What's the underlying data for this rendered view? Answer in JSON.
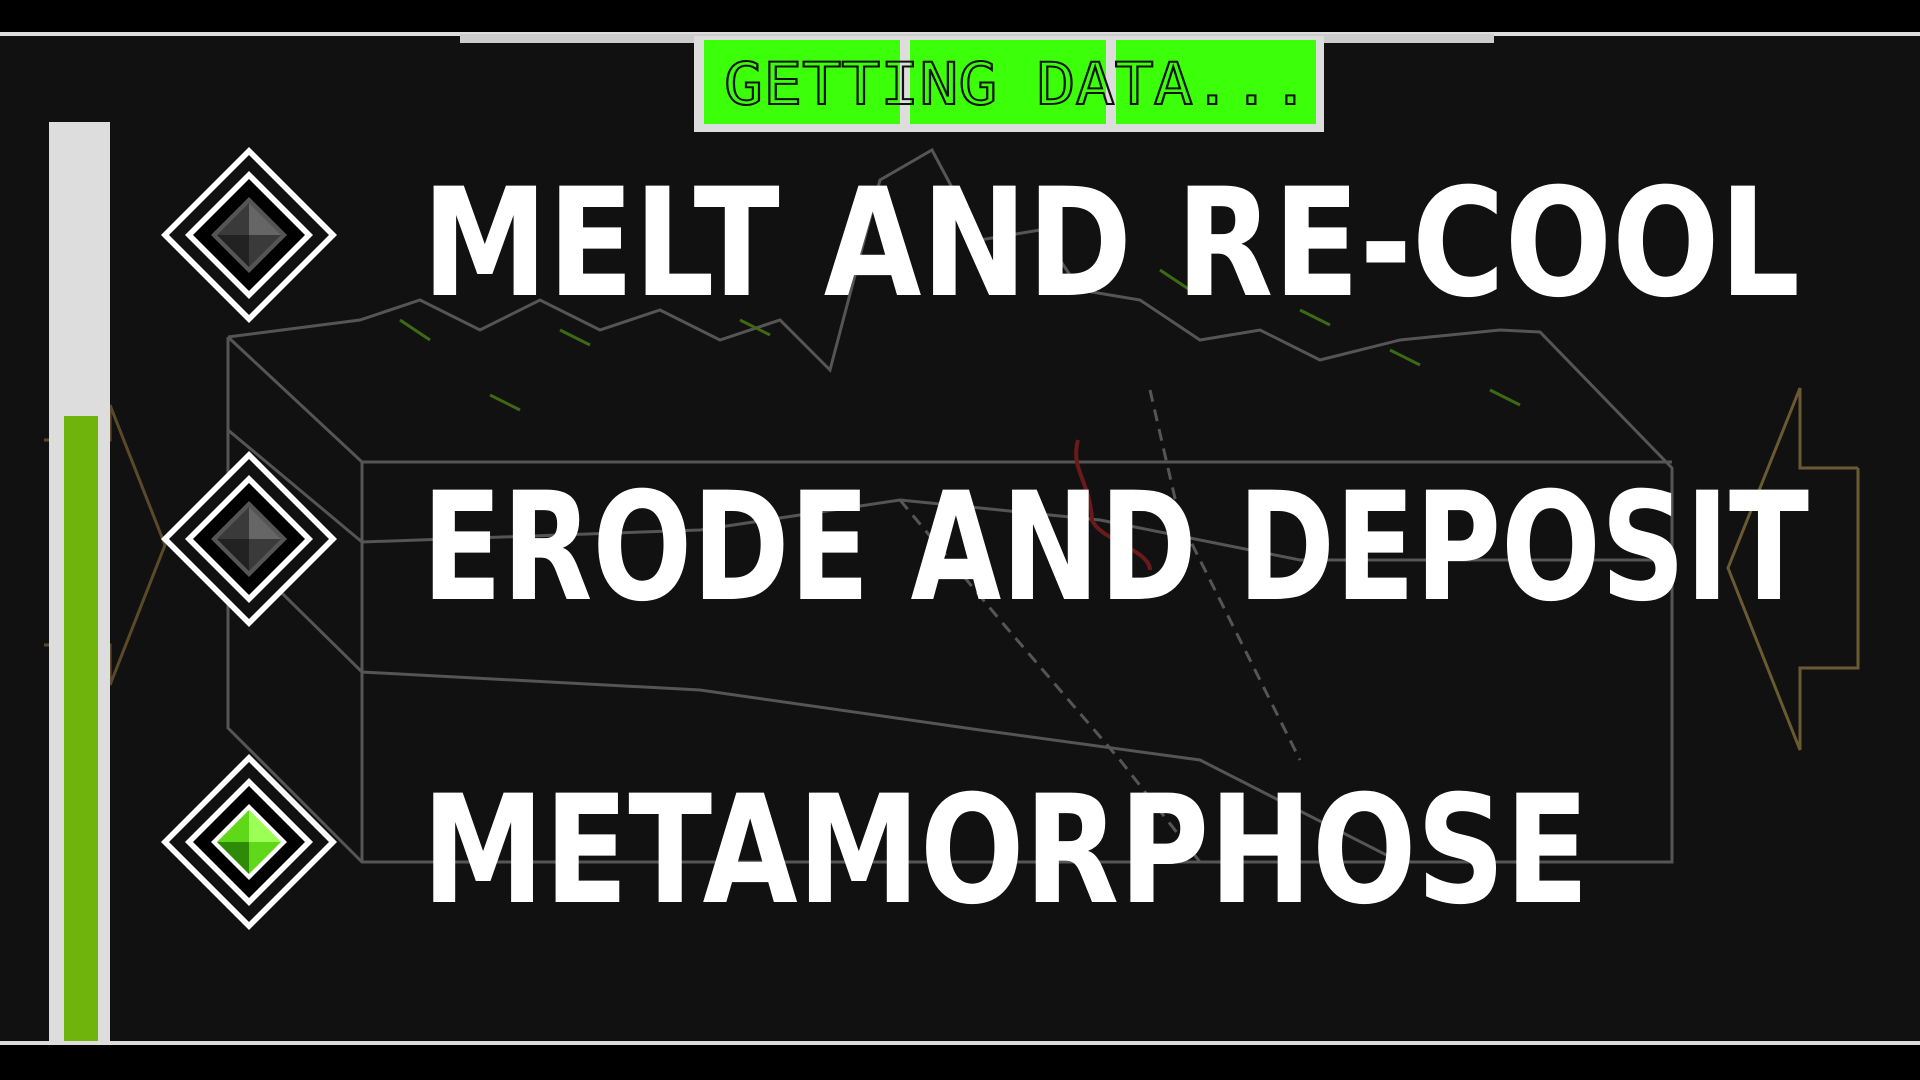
{
  "status": {
    "text": "GETTING DATA..."
  },
  "menu": {
    "options": [
      {
        "label": "MELT AND RE-COOL"
      },
      {
        "label": "ERODE AND DEPOSIT"
      },
      {
        "label": "METAMORPHOSE"
      }
    ]
  }
}
